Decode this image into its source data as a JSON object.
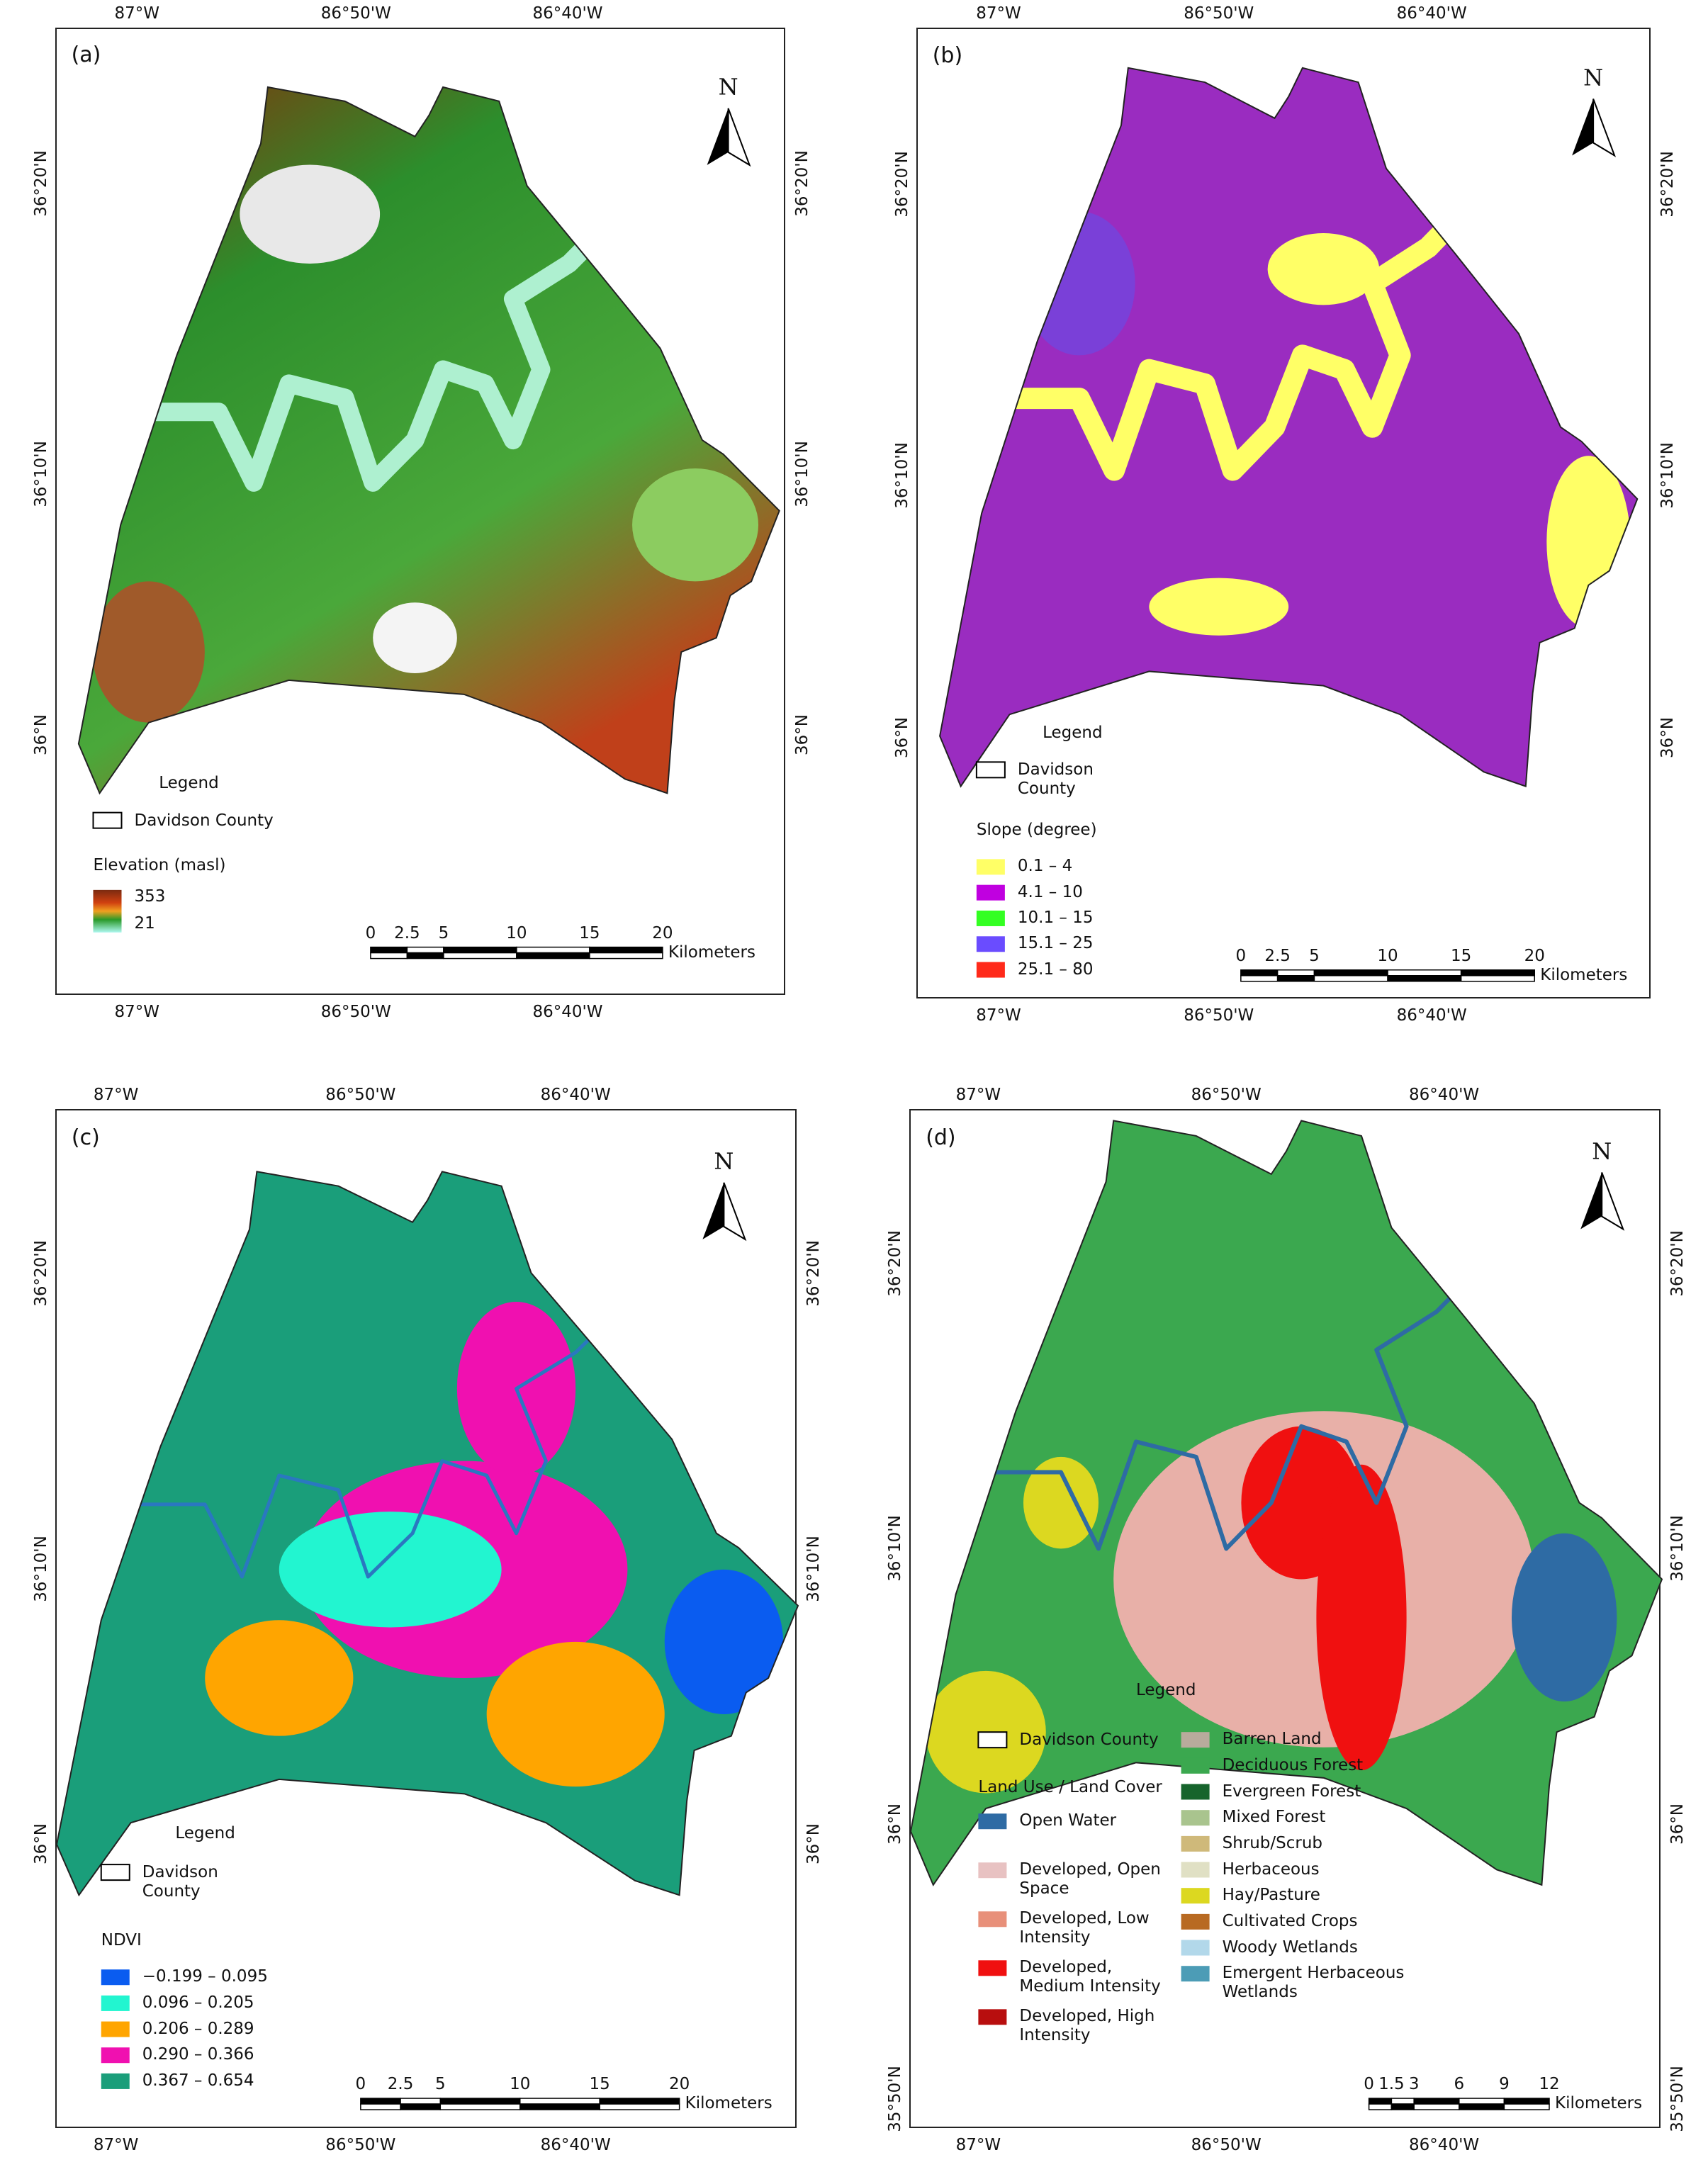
{
  "panels": [
    {
      "label": "(a)",
      "top_ticks": [
        "87°W",
        "86°50'W",
        "86°40'W"
      ],
      "bottom_ticks": [
        "87°W",
        "86°50'W",
        "86°40'W"
      ],
      "left_ticks": [
        "36°20'N",
        "36°10'N",
        "36°N"
      ],
      "right_ticks": [
        "36°20'N",
        "36°10'N",
        "36°N"
      ],
      "north": "N",
      "legend_title": "Legend",
      "boundary": "Davidson County",
      "section_title": "Elevation (masl)",
      "ramp": {
        "high": 353,
        "low": 21
      },
      "scale": {
        "ticks": [
          0,
          2.5,
          5,
          10,
          15,
          20
        ],
        "unit": "Kilometers"
      }
    },
    {
      "label": "(b)",
      "top_ticks": [
        "87°W",
        "86°50'W",
        "86°40'W"
      ],
      "bottom_ticks": [
        "87°W",
        "86°50'W",
        "86°40'W"
      ],
      "left_ticks": [
        "36°20'N",
        "36°10'N",
        "36°N"
      ],
      "right_ticks": [
        "36°20'N",
        "36°10'N",
        "36°N"
      ],
      "north": "N",
      "legend_title": "Legend",
      "boundary": "Davidson County",
      "section_title": "Slope (degree)",
      "items": [
        {
          "label": "0.1 – 4",
          "color": "#ffff66"
        },
        {
          "label": "4.1 – 10",
          "color": "#c000e0"
        },
        {
          "label": "10.1 – 15",
          "color": "#33ff22"
        },
        {
          "label": "15.1 – 25",
          "color": "#6a4cff"
        },
        {
          "label": "25.1 – 80",
          "color": "#ff2a1a"
        }
      ],
      "scale": {
        "ticks": [
          0,
          2.5,
          5,
          10,
          15,
          20
        ],
        "unit": "Kilometers"
      }
    },
    {
      "label": "(c)",
      "top_ticks": [
        "87°W",
        "86°50'W",
        "86°40'W"
      ],
      "bottom_ticks": [
        "87°W",
        "86°50'W",
        "86°40'W"
      ],
      "left_ticks": [
        "36°20'N",
        "36°10'N",
        "36°N"
      ],
      "right_ticks": [
        "36°20'N",
        "36°10'N",
        "36°N"
      ],
      "north": "N",
      "legend_title": "Legend",
      "boundary": "Davidson County",
      "section_title": "NDVI",
      "items": [
        {
          "label": "−0.199 – 0.095",
          "color": "#0a5cf0"
        },
        {
          "label": "0.096 – 0.205",
          "color": "#22f5d0"
        },
        {
          "label": "0.206 – 0.289",
          "color": "#ffa500"
        },
        {
          "label": "0.290 – 0.366",
          "color": "#f010b0"
        },
        {
          "label": "0.367 – 0.654",
          "color": "#1a9e7a"
        }
      ],
      "scale": {
        "ticks": [
          0,
          2.5,
          5,
          10,
          15,
          20
        ],
        "unit": "Kilometers"
      }
    },
    {
      "label": "(d)",
      "top_ticks": [
        "87°W",
        "86°50'W",
        "86°40'W"
      ],
      "bottom_ticks": [
        "87°W",
        "86°50'W",
        "86°40'W"
      ],
      "left_ticks": [
        "36°20'N",
        "36°10'N",
        "36°N",
        "35°50'N"
      ],
      "right_ticks": [
        "36°20'N",
        "36°10'N",
        "36°N",
        "35°50'N"
      ],
      "north": "N",
      "legend_title": "Legend",
      "boundary": "Davidson County",
      "section_title": "Land Use / Land Cover",
      "items": [
        {
          "label": "Open Water",
          "color": "#2e6ba4"
        },
        {
          "label": "Developed, Open Space",
          "color": "#e8c2c2"
        },
        {
          "label": "Developed, Low Intensity",
          "color": "#e8907a"
        },
        {
          "label": "Developed, Medium Intensity",
          "color": "#f01010"
        },
        {
          "label": "Developed, High Intensity",
          "color": "#b80e0e"
        },
        {
          "label": "Barren Land",
          "color": "#b8ab9c"
        },
        {
          "label": "Deciduous Forest",
          "color": "#3ba84f"
        },
        {
          "label": "Evergreen Forest",
          "color": "#16642c"
        },
        {
          "label": "Mixed Forest",
          "color": "#a9c48e"
        },
        {
          "label": "Shrub/Scrub",
          "color": "#cfb97a"
        },
        {
          "label": "Herbaceous",
          "color": "#e0e0c4"
        },
        {
          "label": "Hay/Pasture",
          "color": "#dcd820"
        },
        {
          "label": "Cultivated Crops",
          "color": "#b86a22"
        },
        {
          "label": "Woody Wetlands",
          "color": "#b2d8ea"
        },
        {
          "label": "Emergent Herbaceous Wetlands",
          "color": "#4c9cb6"
        }
      ],
      "scale": {
        "ticks": [
          0,
          1.5,
          3,
          6,
          9,
          12
        ],
        "unit": "Kilometers"
      }
    }
  ]
}
